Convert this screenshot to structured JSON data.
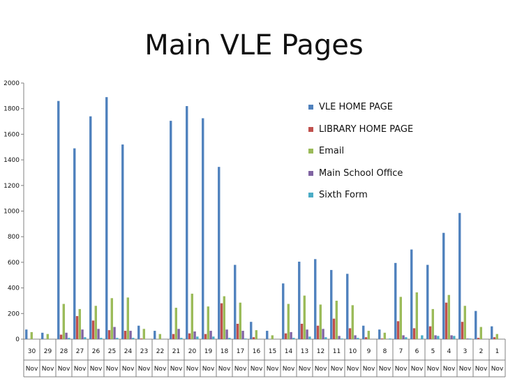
{
  "title": "Main VLE Pages",
  "chart_data": {
    "type": "bar",
    "categories": [
      "30 Nov",
      "29 Nov",
      "28 Nov",
      "27 Nov",
      "26 Nov",
      "25 Nov",
      "24 Nov",
      "23 Nov",
      "22 Nov",
      "21 Nov",
      "20 Nov",
      "19 Nov",
      "18 Nov",
      "17 Nov",
      "16 Nov",
      "15 Nov",
      "14 Nov",
      "13 Nov",
      "12 Nov",
      "11 Nov",
      "10 Nov",
      "9 Nov",
      "8 Nov",
      "7 Nov",
      "6 Nov",
      "5 Nov",
      "4 Nov",
      "3 Nov",
      "2 Nov",
      "1 Nov"
    ],
    "category_labels": [
      {
        "day": "30",
        "month": "Nov"
      },
      {
        "day": "29",
        "month": "Nov"
      },
      {
        "day": "28",
        "month": "Nov"
      },
      {
        "day": "27",
        "month": "Nov"
      },
      {
        "day": "26",
        "month": "Nov"
      },
      {
        "day": "25",
        "month": "Nov"
      },
      {
        "day": "24",
        "month": "Nov"
      },
      {
        "day": "23",
        "month": "Nov"
      },
      {
        "day": "22",
        "month": "Nov"
      },
      {
        "day": "21",
        "month": "Nov"
      },
      {
        "day": "20",
        "month": "Nov"
      },
      {
        "day": "19",
        "month": "Nov"
      },
      {
        "day": "18",
        "month": "Nov"
      },
      {
        "day": "17",
        "month": "Nov"
      },
      {
        "day": "16",
        "month": "Nov"
      },
      {
        "day": "15",
        "month": "Nov"
      },
      {
        "day": "14",
        "month": "Nov"
      },
      {
        "day": "13",
        "month": "Nov"
      },
      {
        "day": "12",
        "month": "Nov"
      },
      {
        "day": "11",
        "month": "Nov"
      },
      {
        "day": "10",
        "month": "Nov"
      },
      {
        "day": "9",
        "month": "Nov"
      },
      {
        "day": "8",
        "month": "Nov"
      },
      {
        "day": "7",
        "month": "Nov"
      },
      {
        "day": "6",
        "month": "Nov"
      },
      {
        "day": "5",
        "month": "Nov"
      },
      {
        "day": "4",
        "month": "Nov"
      },
      {
        "day": "3",
        "month": "Nov"
      },
      {
        "day": "2",
        "month": "Nov"
      },
      {
        "day": "1",
        "month": "Nov"
      }
    ],
    "series": [
      {
        "name": "VLE HOME PAGE",
        "color": "#4F81BD",
        "values": [
          75,
          50,
          1860,
          1490,
          1740,
          1890,
          1520,
          105,
          65,
          1705,
          1820,
          1725,
          1345,
          580,
          135,
          65,
          435,
          605,
          625,
          540,
          510,
          105,
          75,
          595,
          700,
          580,
          830,
          985,
          220,
          100
        ]
      },
      {
        "name": "LIBRARY HOME PAGE",
        "color": "#C0504D",
        "values": [
          0,
          0,
          35,
          180,
          145,
          70,
          65,
          5,
          0,
          40,
          45,
          40,
          280,
          120,
          15,
          0,
          45,
          120,
          105,
          160,
          85,
          15,
          5,
          140,
          85,
          100,
          285,
          135,
          10,
          15
        ]
      },
      {
        "name": "Email",
        "color": "#9BBB59",
        "values": [
          55,
          40,
          275,
          235,
          260,
          320,
          325,
          80,
          40,
          245,
          355,
          255,
          335,
          285,
          70,
          30,
          275,
          340,
          270,
          300,
          265,
          65,
          50,
          330,
          365,
          235,
          345,
          260,
          95,
          40
        ]
      },
      {
        "name": "Main School Office",
        "color": "#8064A2",
        "values": [
          0,
          0,
          50,
          75,
          80,
          95,
          65,
          0,
          0,
          80,
          60,
          65,
          75,
          65,
          0,
          0,
          55,
          75,
          80,
          25,
          30,
          0,
          0,
          30,
          0,
          30,
          30,
          5,
          0,
          0
        ]
      },
      {
        "name": "Sixth Form",
        "color": "#4BACC6",
        "values": [
          0,
          0,
          10,
          15,
          10,
          10,
          10,
          0,
          0,
          10,
          20,
          20,
          10,
          5,
          0,
          0,
          10,
          20,
          15,
          5,
          10,
          0,
          5,
          15,
          30,
          25,
          25,
          5,
          0,
          0
        ]
      }
    ],
    "y_ticks": [
      "0",
      "200",
      "400",
      "600",
      "800",
      "1000",
      "1200",
      "1400",
      "1600",
      "1800",
      "2000"
    ],
    "ylim": [
      0,
      2000
    ],
    "grid": false,
    "legend_position": "right"
  }
}
